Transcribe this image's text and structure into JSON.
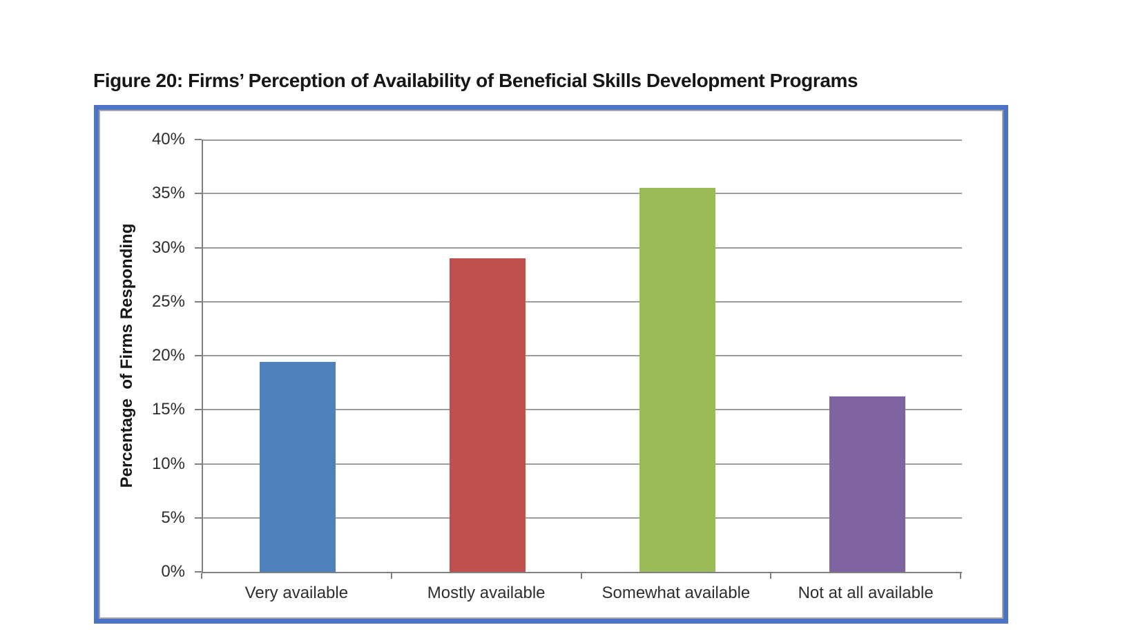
{
  "header": {
    "figure_title": "Figure 20: Firms’ Perception of Availability of Beneficial Skills Development Programs"
  },
  "chart_data": {
    "type": "bar",
    "title": "Figure 20: Firms’ Perception of Availability of Beneficial Skills Development Programs",
    "categories": [
      "Very available",
      "Mostly available",
      "Somewhat available",
      "Not at all available"
    ],
    "values": [
      19.4,
      29.0,
      35.5,
      16.2
    ],
    "bar_colors": [
      "#4F81BD",
      "#C0504D",
      "#9BBB59",
      "#8064A2"
    ],
    "xlabel": "",
    "ylabel": "Percentage  of Firms Responding",
    "ylim": [
      0,
      40
    ],
    "ytick_step": 5,
    "ytick_values": [
      40,
      35,
      30,
      25,
      20,
      15,
      10,
      5,
      0
    ],
    "ytick_labels": [
      "40%",
      "35%",
      "30%",
      "25%",
      "20%",
      "15%",
      "10%",
      "5%",
      "0%"
    ],
    "grid": "horizontal",
    "legend": "none",
    "colors": {
      "frame_outer_border": "#4d74c4",
      "frame_inner_border": "#a6a6a6",
      "gridline": "#9c9c9c",
      "axis_line": "#7f7f7f",
      "tick_text": "#2e2e2e",
      "title_text": "#161616"
    }
  }
}
